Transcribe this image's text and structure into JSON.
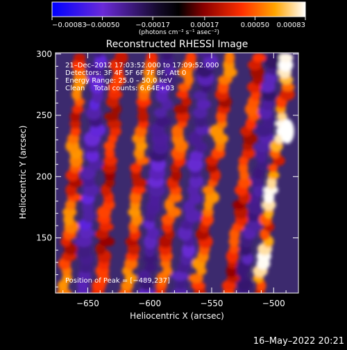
{
  "chart_data": {
    "type": "heatmap",
    "title": "Reconstructed RHESSI Image",
    "xlabel": "Heliocentric X (arcsec)",
    "ylabel": "Heliocentric Y (arcsec)",
    "xlim": [
      -676,
      -480
    ],
    "ylim": [
      105,
      301
    ],
    "x_ticks": [
      -650,
      -600,
      -550,
      -500
    ],
    "y_ticks": [
      150,
      200,
      250,
      300
    ],
    "x_tick_labels": [
      "−650",
      "−600",
      "−550",
      "−500"
    ],
    "y_tick_labels": [
      "150",
      "200",
      "250",
      "300"
    ],
    "colorbar": {
      "range": [
        -0.00083,
        0.00083
      ],
      "ticks": [
        -0.00083,
        -0.0005,
        -0.00017,
        0.00017,
        0.0005,
        0.00083
      ],
      "tick_labels": [
        "−0.00083",
        "−0.00050",
        "−0.00017",
        "0.00017",
        "0.00050",
        "0.00083"
      ],
      "units_label": "(photons cm⁻² s⁻¹ asec⁻²)",
      "colors": [
        "#0000ff",
        "#8a2be2",
        "#000000",
        "#8b0000",
        "#ff4500",
        "#ffa500",
        "#ffffff"
      ]
    },
    "annotations": [
      "21–Dec–2012 17:03:52.000 to 17:09:52.000",
      "Detectors: 3F 4F 5F 6F 7F 8F, Att 0",
      "Energy Range: 25.0 – 50.0 keV",
      "Clean    Total counts: 6.64E+03"
    ],
    "peak_label": "Position of Peak = [−489,237]",
    "peak_position": [
      -489,
      237
    ],
    "ridges": [
      {
        "x_at_bottom": -668,
        "x_at_top": -655,
        "peak_value": 0.0006
      },
      {
        "x_at_bottom": -640,
        "x_at_top": -625,
        "peak_value": 0.00045
      },
      {
        "x_at_bottom": -618,
        "x_at_top": -600,
        "peak_value": 0.0006
      },
      {
        "x_at_bottom": -590,
        "x_at_top": -568,
        "peak_value": 0.00055
      },
      {
        "x_at_bottom": -562,
        "x_at_top": -535,
        "peak_value": 0.0006
      },
      {
        "x_at_bottom": -535,
        "x_at_top": -512,
        "peak_value": 0.0005
      },
      {
        "x_at_bottom": -512,
        "x_at_top": -487,
        "peak_value": 0.00083
      }
    ],
    "troughs": [
      {
        "x_at_bottom": -654,
        "x_at_top": -640,
        "value": -0.00055
      },
      {
        "x_at_bottom": -603,
        "x_at_top": -585,
        "value": -0.0005
      },
      {
        "x_at_bottom": -575,
        "x_at_top": -552,
        "value": -0.0005
      },
      {
        "x_at_bottom": -525,
        "x_at_top": -498,
        "value": -0.00045
      }
    ],
    "footer_timestamp": "16–May–2022 20:21"
  }
}
